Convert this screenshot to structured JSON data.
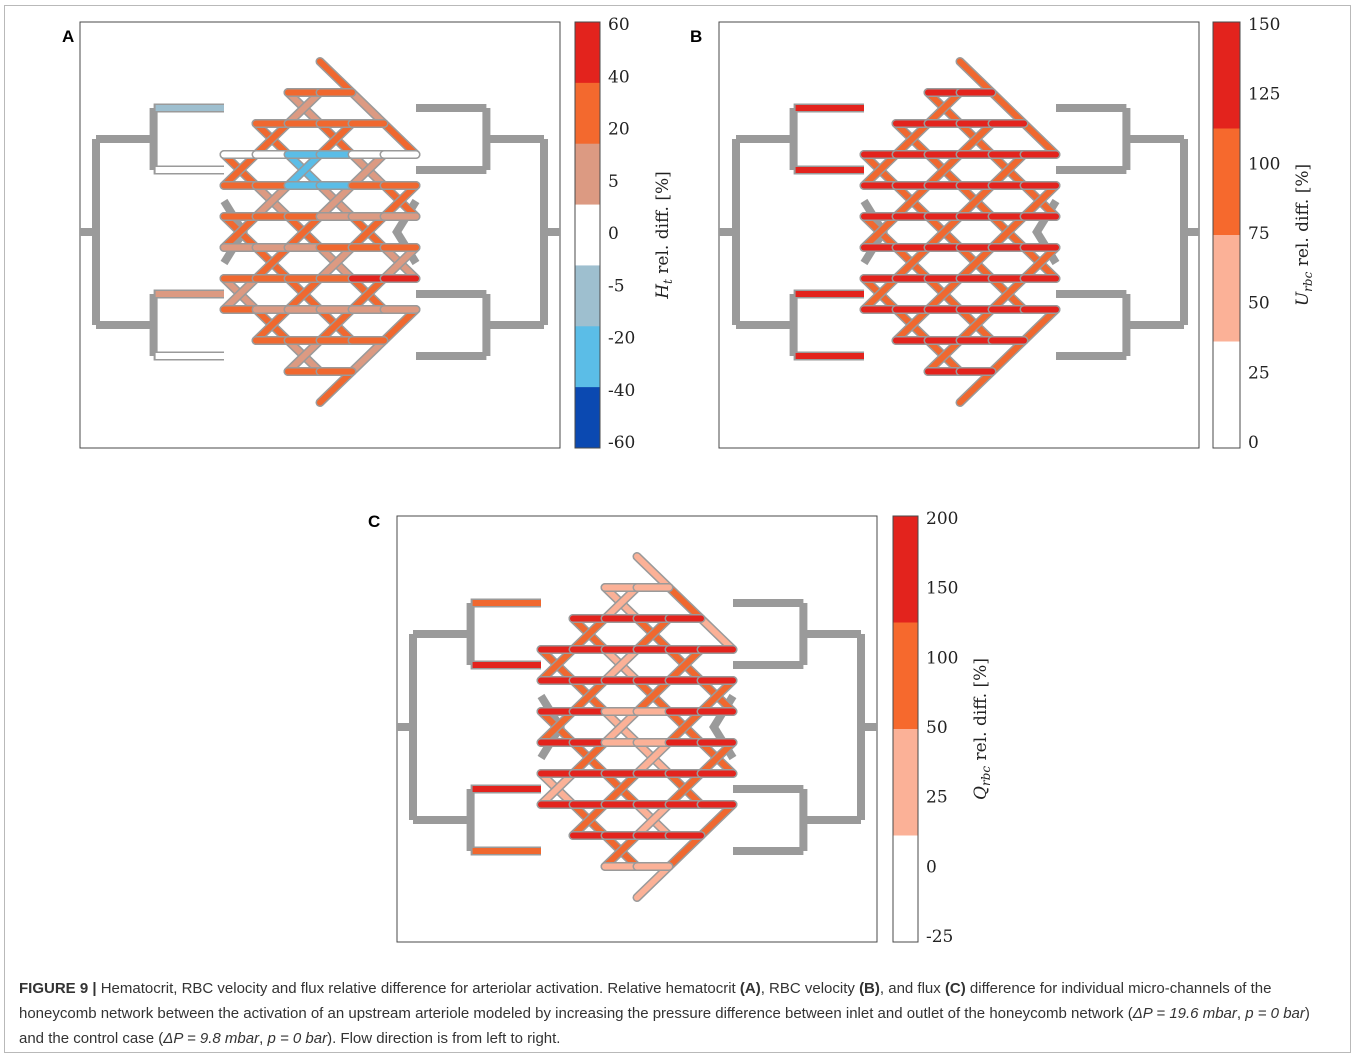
{
  "panels": [
    {
      "letter": "A",
      "colorbar": {
        "label": "H_t rel. diff. [%]",
        "label_main": "H",
        "label_sub": "t",
        "label_rest": " rel. diff. [%]",
        "ticks": [
          "60",
          "40",
          "20",
          "5",
          "0",
          "-5",
          "-20",
          "-40",
          "-60"
        ],
        "bands": [
          "#e3231d",
          "#f3692e",
          "#dc9a82",
          "#ffffff",
          "#9ebfcf",
          "#5bbde7",
          "#0b49b1"
        ]
      }
    },
    {
      "letter": "B",
      "colorbar": {
        "label": "U_rbc rel. diff. [%]",
        "label_main": "U",
        "label_sub": "rbc",
        "label_rest": " rel. diff. [%]",
        "ticks": [
          "150",
          "125",
          "100",
          "75",
          "50",
          "25",
          "0"
        ],
        "bands": [
          "#e3231d",
          "#f6692d",
          "#fbb197",
          "#ffffff"
        ]
      }
    },
    {
      "letter": "C",
      "colorbar": {
        "label": "Q_rbc rel. diff. [%]",
        "label_main": "Q",
        "label_sub": "rbc",
        "label_rest": " rel. diff. [%]",
        "ticks": [
          "200",
          "150",
          "100",
          "50",
          "25",
          "0",
          "-25"
        ],
        "bands": [
          "#e3231d",
          "#f6692d",
          "#fbb197",
          "#ffffff"
        ]
      }
    }
  ],
  "network_colors": {
    "grey": "#9a9a9a",
    "red": "#e3231d",
    "orange": "#f0682f",
    "salmon": "#dc9a82",
    "white": "#ffffff",
    "greyblue": "#9ebfcf",
    "lightblue": "#5bbde7",
    "darkblue": "#0b49b1",
    "peach": "#fbb197"
  },
  "caption": {
    "label": "FIGURE 9 |",
    "p1": " Hematocrit, RBC velocity and flux relative difference for arteriolar activation. Relative hematocrit ",
    "refA": "(A)",
    "p2": ", RBC velocity ",
    "refB": "(B)",
    "p3": ", and flux ",
    "refC": "(C)",
    "p4": " difference for individual micro-channels of the honeycomb network between the activation of an upstream arteriole modeled by increasing the pressure difference between inlet and outlet of the honeycomb network (",
    "dp1": "ΔP = 19.6",
    "unit_mbar": "mbar",
    "sep": ", ",
    "p_eq": "p = 0",
    "unit_bar": "bar",
    "p5": ") and the control case (",
    "dp2": "ΔP = 9.8",
    "p6": "). Flow direction is from left to right."
  }
}
